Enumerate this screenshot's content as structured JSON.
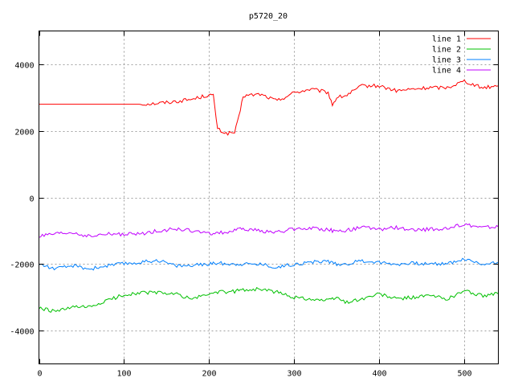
{
  "chart_data": {
    "type": "line",
    "title": "p5720_20",
    "xlabel": "",
    "ylabel": "",
    "xlim": [
      0,
      540
    ],
    "ylim": [
      -5000,
      5000
    ],
    "xticks": [
      0,
      100,
      200,
      300,
      400,
      500
    ],
    "yticks": [
      -4000,
      -2000,
      0,
      2000,
      4000
    ],
    "grid": true,
    "legend_position": "top-right",
    "x": [
      0,
      20,
      40,
      60,
      80,
      100,
      120,
      140,
      160,
      180,
      200,
      205,
      210,
      220,
      230,
      235,
      240,
      260,
      280,
      300,
      320,
      340,
      345,
      350,
      360,
      380,
      400,
      420,
      440,
      460,
      480,
      500,
      520,
      540
    ],
    "series": [
      {
        "name": "line 1",
        "color": "#ff0000",
        "values": [
          2800,
          2800,
          2800,
          2800,
          2800,
          2800,
          2800,
          2830,
          2880,
          2950,
          3080,
          3050,
          2050,
          1920,
          1950,
          2400,
          3050,
          3100,
          2900,
          3150,
          3250,
          3150,
          2780,
          3000,
          3050,
          3350,
          3350,
          3200,
          3250,
          3300,
          3300,
          3500,
          3300,
          3350
        ]
      },
      {
        "name": "line 2",
        "color": "#00c000",
        "values": [
          -3330,
          -3430,
          -3300,
          -3300,
          -3100,
          -2920,
          -2860,
          -2860,
          -2900,
          -3050,
          -2900,
          -2860,
          -2840,
          -2850,
          -2820,
          -2780,
          -2780,
          -2750,
          -2850,
          -3000,
          -3050,
          -3100,
          -3050,
          -3000,
          -3150,
          -3050,
          -2900,
          -3050,
          -3000,
          -2950,
          -3050,
          -2800,
          -2950,
          -2900
        ]
      },
      {
        "name": "line 3",
        "color": "#0080ff",
        "values": [
          -2000,
          -2150,
          -2050,
          -2150,
          -2050,
          -1990,
          -1950,
          -1880,
          -2050,
          -2050,
          -2000,
          -1980,
          -1970,
          -1990,
          -2000,
          -1990,
          -2000,
          -2000,
          -2100,
          -2000,
          -1950,
          -1900,
          -1980,
          -2000,
          -2000,
          -1900,
          -1950,
          -2000,
          -1980,
          -2000,
          -1980,
          -1850,
          -2000,
          -1950
        ]
      },
      {
        "name": "line 4",
        "color": "#c000ff",
        "values": [
          -1170,
          -1100,
          -1060,
          -1180,
          -1100,
          -1110,
          -1100,
          -1000,
          -950,
          -1000,
          -1100,
          -1070,
          -1060,
          -1050,
          -1000,
          -960,
          -950,
          -1000,
          -1050,
          -950,
          -920,
          -960,
          -1000,
          -1000,
          -1000,
          -900,
          -960,
          -900,
          -1000,
          -950,
          -950,
          -800,
          -900,
          -880
        ]
      }
    ]
  }
}
